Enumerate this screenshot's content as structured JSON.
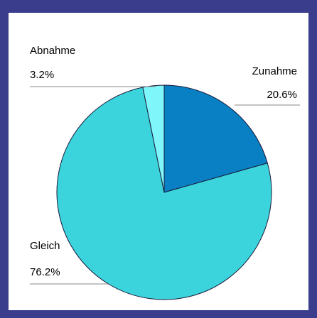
{
  "chart_data": {
    "type": "pie",
    "categories": [
      "Zunahme",
      "Gleich",
      "Abnahme"
    ],
    "values": [
      20.6,
      76.2,
      3.2
    ],
    "value_labels": [
      "20.6%",
      "76.2%",
      "3.2%"
    ],
    "colors": [
      "#0a80c4",
      "#3cd4dc",
      "#7ff7fa"
    ]
  }
}
